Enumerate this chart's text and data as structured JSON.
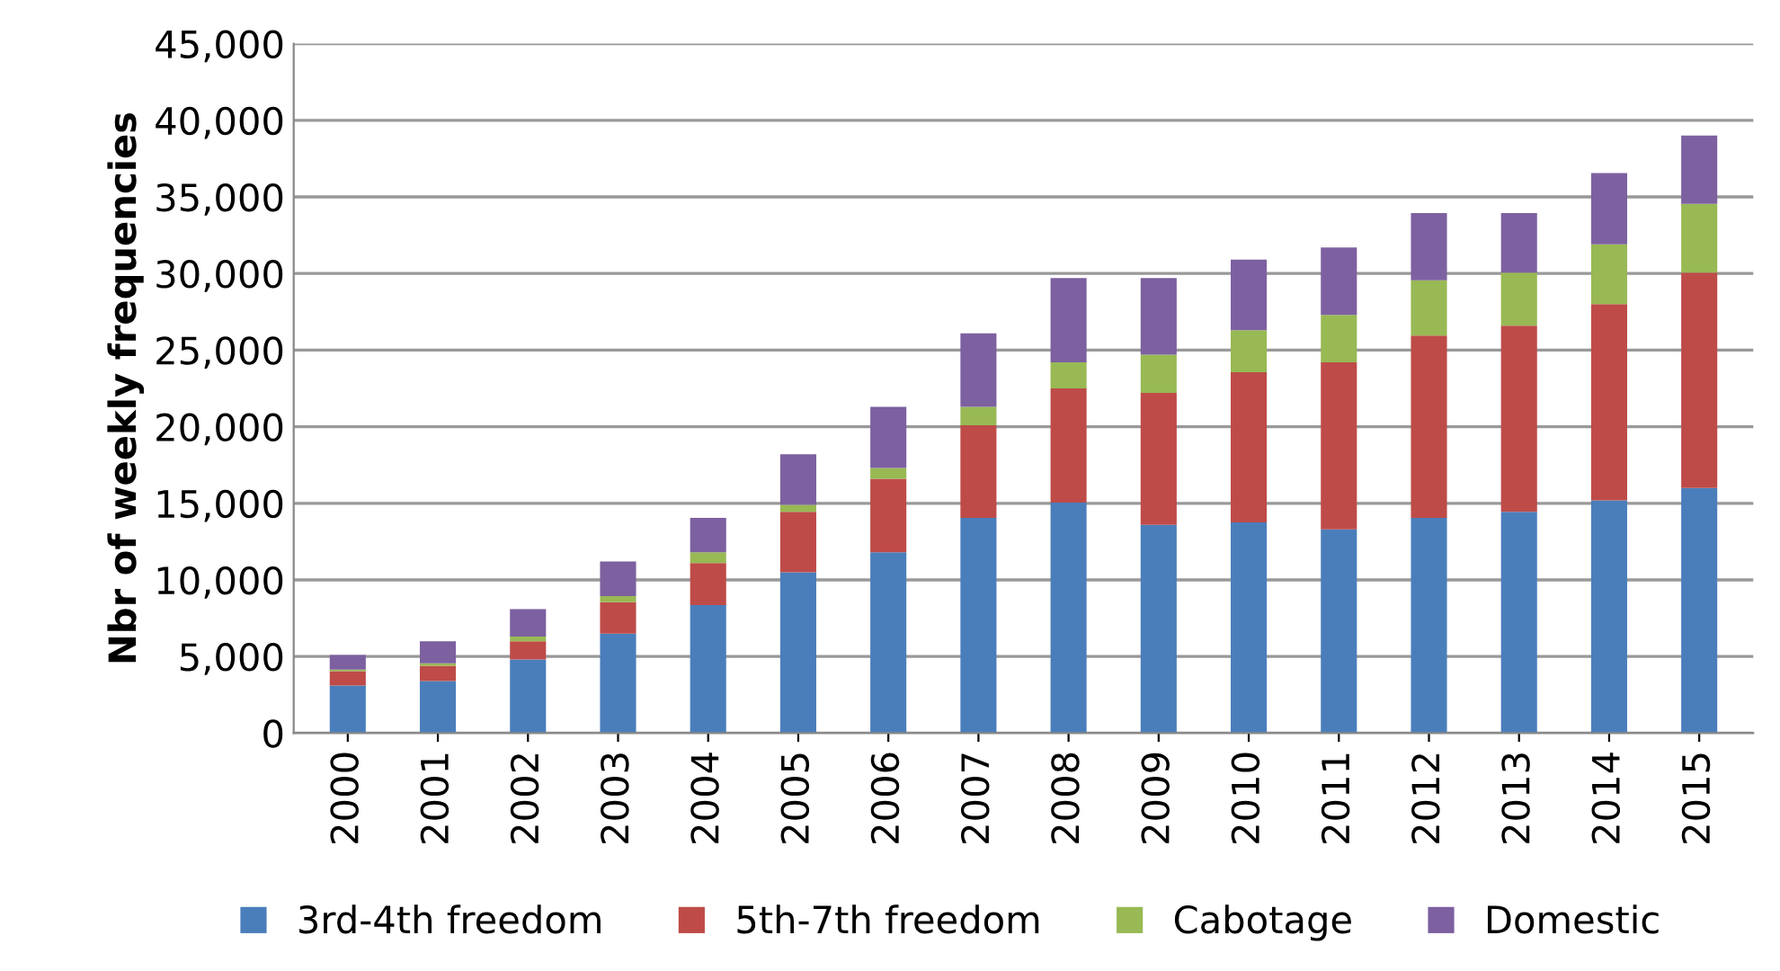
{
  "chart_data": {
    "type": "bar",
    "stacked": true,
    "ylabel": "Nbr of weekly frequencies",
    "categories": [
      "2000",
      "2001",
      "2002",
      "2003",
      "2004",
      "2005",
      "2006",
      "2007",
      "2008",
      "2009",
      "2010",
      "2011",
      "2012",
      "2013",
      "2014",
      "2015"
    ],
    "series": [
      {
        "name": "3rd-4th freedom",
        "color": "#4a7ebb",
        "values": [
          3100,
          3400,
          4800,
          6500,
          8350,
          10500,
          11800,
          14050,
          15050,
          13600,
          13750,
          13300,
          14050,
          14450,
          15200,
          16000
        ]
      },
      {
        "name": "5th-7th freedom",
        "color": "#be4b48",
        "values": [
          950,
          1000,
          1200,
          2050,
          2750,
          3950,
          4800,
          6050,
          7450,
          8600,
          9800,
          10900,
          11900,
          12150,
          12800,
          14050
        ]
      },
      {
        "name": "Cabotage",
        "color": "#98b954",
        "values": [
          100,
          150,
          300,
          400,
          700,
          450,
          700,
          1200,
          1700,
          2500,
          2750,
          3100,
          3600,
          3450,
          3900,
          4500
        ]
      },
      {
        "name": "Domestic",
        "color": "#7d60a0",
        "values": [
          950,
          1450,
          1800,
          2250,
          2250,
          3300,
          4000,
          4800,
          5500,
          5000,
          4600,
          4400,
          4400,
          3900,
          4650,
          4450
        ]
      }
    ],
    "ylim": [
      0,
      45000
    ],
    "yticks": [
      {
        "value": 0,
        "label": "0"
      },
      {
        "value": 5000,
        "label": "5,000"
      },
      {
        "value": 10000,
        "label": "10,000"
      },
      {
        "value": 15000,
        "label": "15,000"
      },
      {
        "value": 20000,
        "label": "20,000"
      },
      {
        "value": 25000,
        "label": "25,000"
      },
      {
        "value": 30000,
        "label": "30,000"
      },
      {
        "value": 35000,
        "label": "35,000"
      },
      {
        "value": 40000,
        "label": "40,000"
      },
      {
        "value": 45000,
        "label": "45,000"
      }
    ],
    "grid": "y",
    "legend": "bottom"
  }
}
